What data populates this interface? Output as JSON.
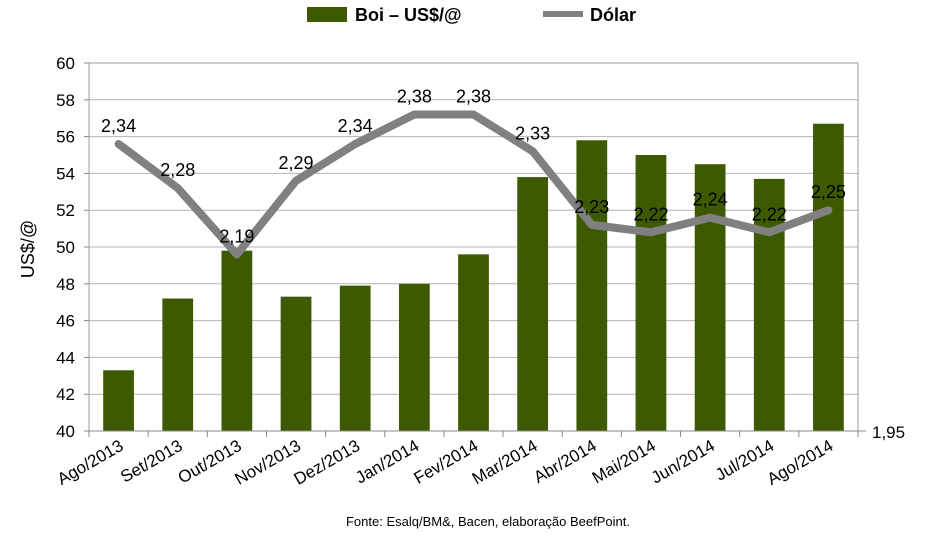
{
  "chart_data": {
    "type": "bar",
    "categories": [
      "Ago/2013",
      "Set/2013",
      "Out/2013",
      "Nov/2013",
      "Dez/2013",
      "Jan/2014",
      "Fev/2014",
      "Mar/2014",
      "Abr/2014",
      "Mai/2014",
      "Jun/2014",
      "Jul/2014",
      "Ago/2014"
    ],
    "series": [
      {
        "name": "Boi – US$/@",
        "type": "bar",
        "axis": "left",
        "color": "#3d5a00",
        "values": [
          43.3,
          47.2,
          49.8,
          47.3,
          47.9,
          48.0,
          49.6,
          53.8,
          55.8,
          55.0,
          54.5,
          53.7,
          56.7
        ]
      },
      {
        "name": "Dólar",
        "type": "line",
        "axis": "right",
        "color": "#808080",
        "values": [
          2.34,
          2.28,
          2.19,
          2.29,
          2.34,
          2.38,
          2.38,
          2.33,
          2.23,
          2.22,
          2.24,
          2.22,
          2.25
        ],
        "labels": [
          "2,34",
          "2,28",
          "2,19",
          "2,29",
          "2,34",
          "2,38",
          "2,38",
          "2,33",
          "2,23",
          "2,22",
          "2,24",
          "2,22",
          "2,25"
        ]
      }
    ],
    "ylabel": "US$/@",
    "ylim": [
      40,
      60
    ],
    "yticks": [
      "40",
      "42",
      "44",
      "46",
      "48",
      "50",
      "52",
      "54",
      "56",
      "58",
      "60"
    ],
    "y2lim": [
      1.95,
      2.45
    ],
    "y2_visible_tick": "1,95",
    "legend_position": "top-center",
    "grid": true,
    "source": "Fonte:  Esalq/BM&,  Bacen,  elaboração  BeefPoint."
  }
}
